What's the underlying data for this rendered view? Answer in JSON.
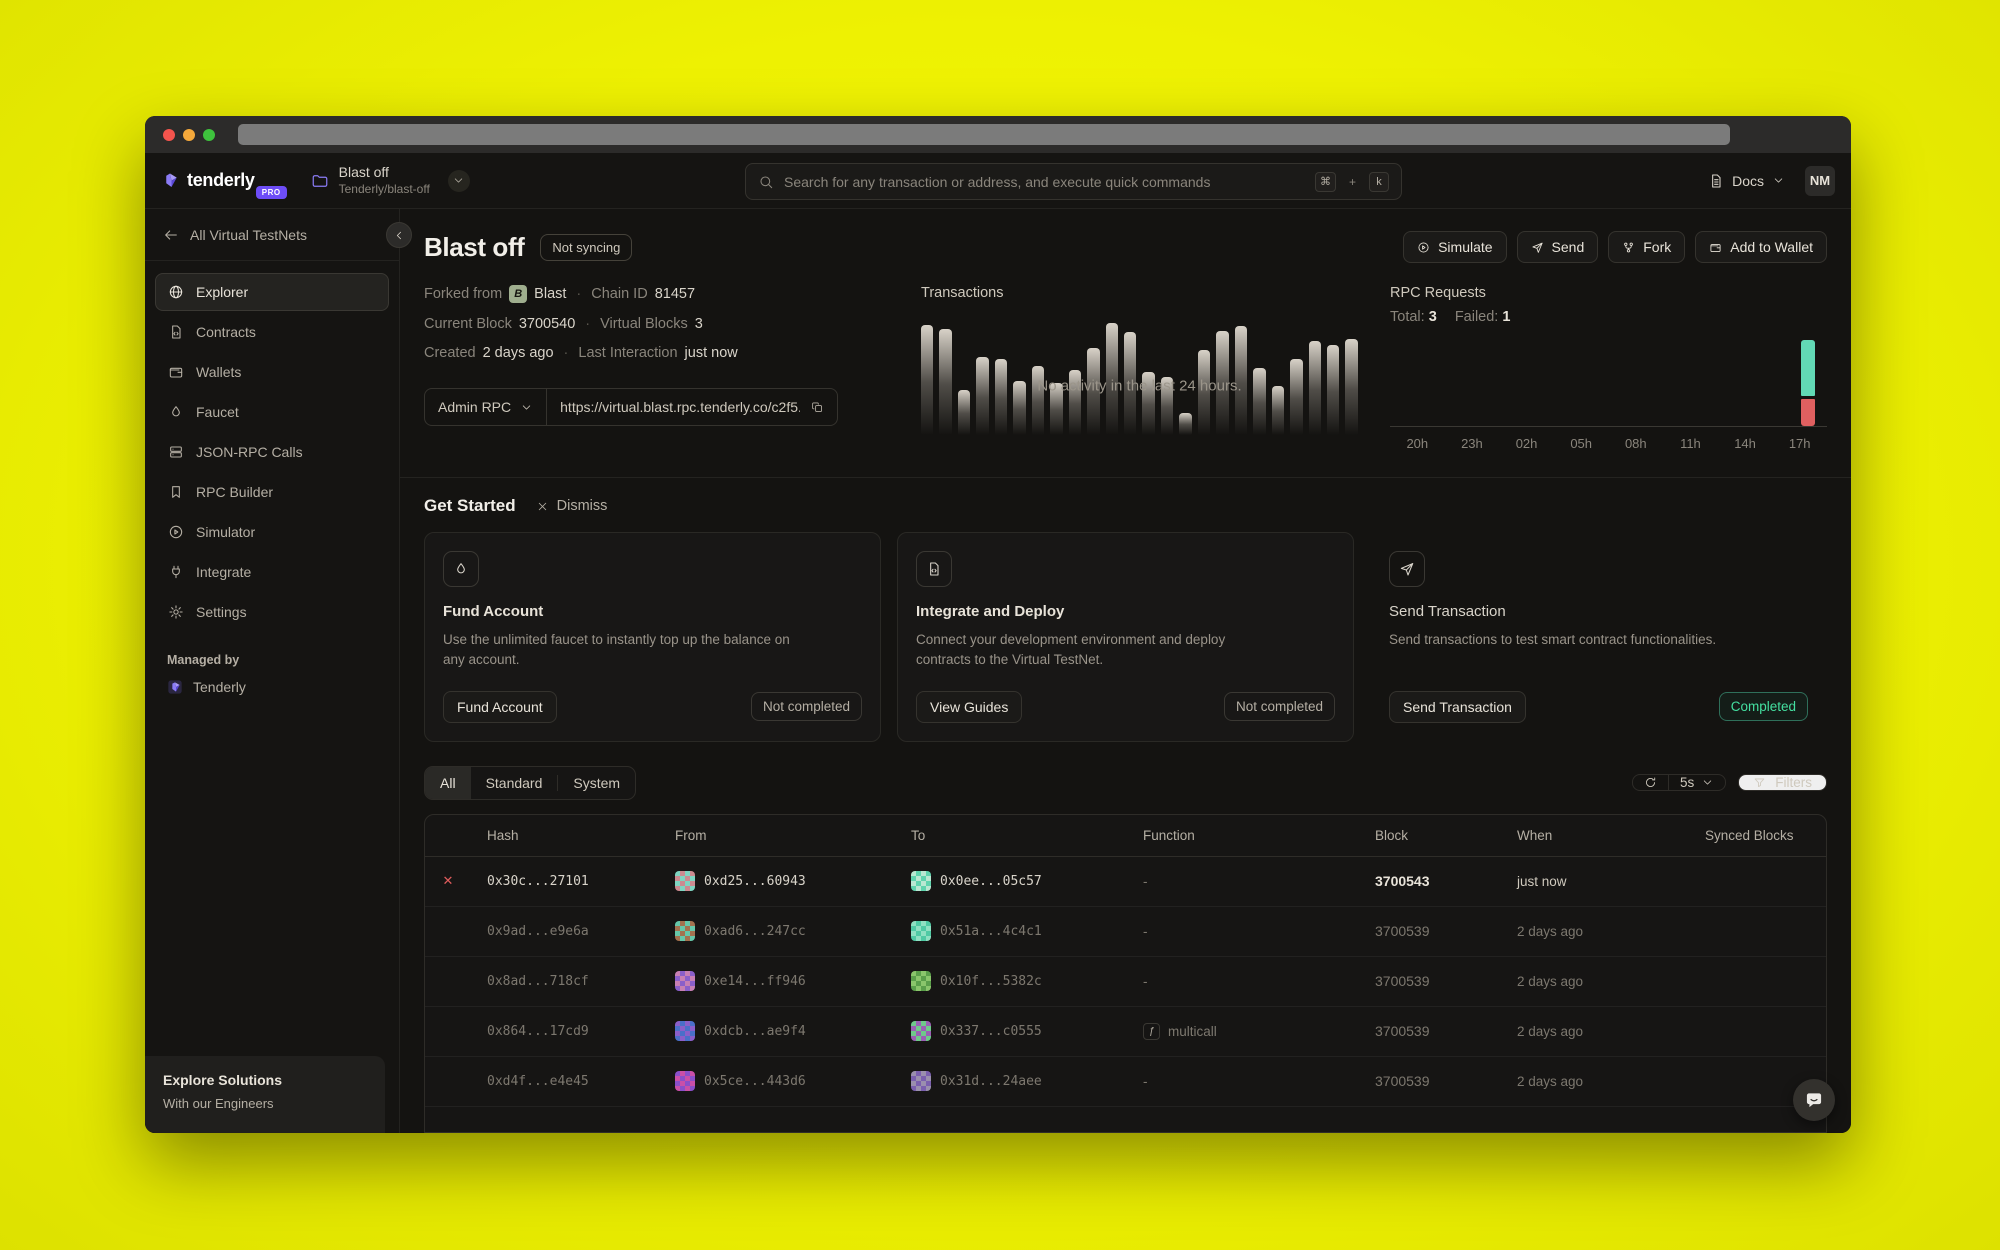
{
  "topnav": {
    "brand_name": "tenderly",
    "brand_badge": "PRO",
    "project_title": "Blast off",
    "project_subtitle": "Tenderly/blast-off",
    "search_placeholder": "Search for any transaction or address, and execute quick commands",
    "shortcut_key1": "⌘",
    "shortcut_plus": "+",
    "shortcut_key2": "k",
    "docs_label": "Docs",
    "avatar_initials": "NM"
  },
  "sidebar": {
    "back_label": "All Virtual TestNets",
    "items": [
      {
        "label": "Explorer"
      },
      {
        "label": "Contracts"
      },
      {
        "label": "Wallets"
      },
      {
        "label": "Faucet"
      },
      {
        "label": "JSON-RPC Calls"
      },
      {
        "label": "RPC Builder"
      },
      {
        "label": "Simulator"
      },
      {
        "label": "Integrate"
      },
      {
        "label": "Settings"
      }
    ],
    "managed_by_label": "Managed by",
    "managed_by_value": "Tenderly",
    "explore_title": "Explore Solutions",
    "explore_subtitle": "With our Engineers"
  },
  "hero": {
    "title": "Blast off",
    "status_badge": "Not syncing",
    "actions": {
      "simulate": "Simulate",
      "send": "Send",
      "fork": "Fork",
      "add_to_wallet": "Add to Wallet"
    },
    "meta": {
      "forked_from_label": "Forked from",
      "chain_name": "Blast",
      "chain_icon_letter": "B",
      "dot": "·",
      "chain_id_label": "Chain ID",
      "chain_id": "81457",
      "current_block_label": "Current Block",
      "current_block": "3700540",
      "virtual_blocks_label": "Virtual Blocks",
      "virtual_blocks": "3",
      "created_label": "Created",
      "created": "2 days ago",
      "last_interaction_label": "Last Interaction",
      "last_interaction": "just now"
    },
    "admin_rpc": {
      "selector_label": "Admin RPC",
      "url": "https://virtual.blast.rpc.tenderly.co/c2f5..."
    }
  },
  "transactions": {
    "title": "Transactions",
    "empty_text": "No activity in the last 24 hours."
  },
  "rpc_requests": {
    "title": "RPC Requests",
    "total_label": "Total:",
    "total_value": "3",
    "failed_label": "Failed:",
    "failed_value": "1",
    "ticks": [
      "20h",
      "23h",
      "02h",
      "05h",
      "08h",
      "11h",
      "14h",
      "17h"
    ],
    "ok_color": "#62d9b5",
    "fail_color": "#e06060"
  },
  "get_started": {
    "title": "Get Started",
    "dismiss_label": "Dismiss",
    "cards": [
      {
        "title": "Fund Account",
        "description": "Use the unlimited faucet to instantly top up the balance on any account.",
        "button_label": "Fund Account",
        "badge": "Not completed",
        "completed": false
      },
      {
        "title": "Integrate and Deploy",
        "description": "Connect your development environment and deploy contracts to the Virtual TestNet.",
        "button_label": "View Guides",
        "badge": "Not completed",
        "completed": false
      },
      {
        "title": "Send Transaction",
        "description": "Send transactions to test smart contract functionalities.",
        "button_label": "Send Transaction",
        "badge": "Completed",
        "completed": true
      }
    ]
  },
  "filter_bar": {
    "tabs": [
      "All",
      "Standard",
      "System"
    ],
    "active_tab": "All",
    "refresh_interval": "5s",
    "filters_label": "Filters"
  },
  "table": {
    "columns": [
      "Hash",
      "From",
      "To",
      "Function",
      "Block",
      "When",
      "Synced Blocks"
    ],
    "rows": [
      {
        "failed": true,
        "hash": "0x30c...27101",
        "from": "0xd25...60943",
        "from_colors": [
          "#cc8a90",
          "#7fd4c1"
        ],
        "to": "0x0ee...05c57",
        "to_colors": [
          "#5fd3ae",
          "#b9e8d2"
        ],
        "function": "-",
        "block": "3700543",
        "when": "just now"
      },
      {
        "failed": false,
        "hash": "0x9ad...e9e6a",
        "from": "0xad6...247cc",
        "from_colors": [
          "#a3714f",
          "#66c7a9"
        ],
        "to": "0x51a...4c4c1",
        "to_colors": [
          "#4fc9a4",
          "#8fe0c2"
        ],
        "function": "-",
        "block": "3700539",
        "when": "2 days ago"
      },
      {
        "failed": false,
        "hash": "0x8ad...718cf",
        "from": "0xe14...ff946",
        "from_colors": [
          "#8a5fc9",
          "#c77fb4"
        ],
        "to": "0x10f...5382c",
        "to_colors": [
          "#5a9e4a",
          "#8ac56b"
        ],
        "function": "-",
        "block": "3700539",
        "when": "2 days ago"
      },
      {
        "failed": false,
        "hash": "0x864...17cd9",
        "from": "0xdcb...ae9f4",
        "from_colors": [
          "#4a6fc9",
          "#8a5fc9"
        ],
        "to": "0x337...c0555",
        "to_colors": [
          "#9a5fb4",
          "#6fc98a"
        ],
        "function": "multicall",
        "block": "3700539",
        "when": "2 days ago"
      },
      {
        "failed": false,
        "hash": "0xd4f...e4e45",
        "from": "0x5ce...443d6",
        "from_colors": [
          "#c94fa8",
          "#8a4fc9"
        ],
        "to": "0x31d...24aee",
        "to_colors": [
          "#7a5fae",
          "#9a8fae"
        ],
        "function": "-",
        "block": "3700539",
        "when": "2 days ago"
      }
    ]
  },
  "chart_data": [
    {
      "type": "bar",
      "title": "Transactions",
      "note": "decorative placeholder bars behind empty-state text",
      "values": [
        0.98,
        0.95,
        0.4,
        0.7,
        0.68,
        0.48,
        0.62,
        0.46,
        0.58,
        0.78,
        1.0,
        0.92,
        0.56,
        0.52,
        0.2,
        0.76,
        0.93,
        0.97,
        0.6,
        0.44,
        0.68,
        0.84,
        0.8,
        0.86
      ],
      "annotation": "No activity in the last 24 hours."
    },
    {
      "type": "bar",
      "title": "RPC Requests",
      "categories": [
        "20h",
        "23h",
        "02h",
        "05h",
        "08h",
        "11h",
        "14h",
        "17h"
      ],
      "series": [
        {
          "name": "Success",
          "values": [
            0,
            0,
            0,
            0,
            0,
            0,
            0,
            2
          ],
          "color": "#62d9b5"
        },
        {
          "name": "Failed",
          "values": [
            0,
            0,
            0,
            0,
            0,
            0,
            0,
            1
          ],
          "color": "#e06060"
        }
      ],
      "total": 3,
      "failed": 1
    }
  ],
  "colors": {
    "background": "#eef102",
    "window_bg": "#151412",
    "accent_purple": "#6d4df7",
    "success": "#62d9b5",
    "error": "#e05c5c"
  }
}
